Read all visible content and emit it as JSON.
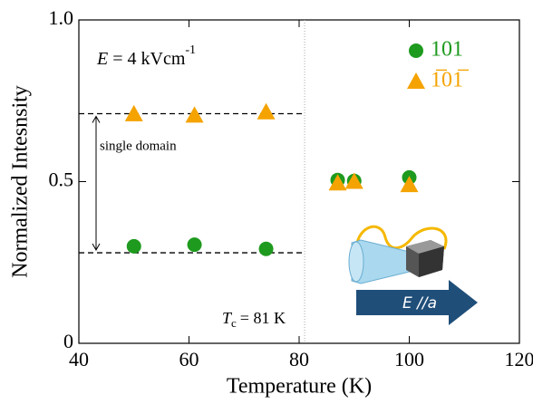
{
  "chart_data": {
    "type": "scatter",
    "xlabel": "Temperature (K)",
    "ylabel": "Normalized Intesnsity",
    "xlim": [
      40,
      120
    ],
    "ylim": [
      0,
      1
    ],
    "xticks": [
      40,
      60,
      80,
      100,
      120
    ],
    "yticks": [
      0,
      0.5,
      {
        "value": 1,
        "label": "1.0"
      }
    ],
    "series": [
      {
        "name": "101",
        "color": "#1e9a1e",
        "marker": "circle",
        "x": [
          50,
          61,
          74,
          87,
          90,
          100
        ],
        "values": [
          0.3,
          0.305,
          0.292,
          0.505,
          0.502,
          0.513
        ]
      },
      {
        "name": "1̅01̅",
        "color": "#f5a300",
        "marker": "triangle",
        "x": [
          50,
          61,
          74,
          87,
          90,
          100
        ],
        "values": [
          0.709,
          0.705,
          0.715,
          0.495,
          0.5,
          0.49
        ]
      }
    ],
    "hlines": [
      0.71,
      0.28
    ],
    "vline": 81,
    "field_label": {
      "symbol": "E",
      "text": "= 4 kVcm",
      "sup": "-1"
    },
    "domain_label": "single domain",
    "tc_label": {
      "symbol": "T",
      "sub": "c",
      "text": "= 81 K"
    },
    "arrow_label": "E //a"
  }
}
